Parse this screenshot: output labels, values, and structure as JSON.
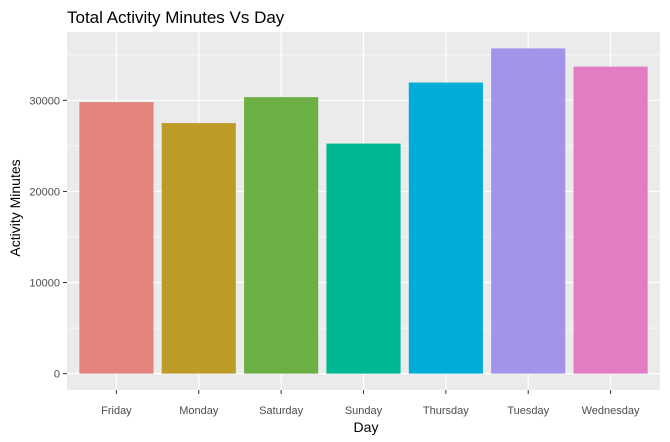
{
  "chart_data": {
    "type": "bar",
    "title": "Total Activity Minutes Vs Day",
    "xlabel": "Day",
    "ylabel": "Activity Minutes",
    "categories": [
      "Friday",
      "Monday",
      "Saturday",
      "Sunday",
      "Thursday",
      "Tuesday",
      "Wednesday"
    ],
    "values": [
      29800,
      27500,
      30350,
      25250,
      31950,
      35700,
      33700
    ],
    "colors": [
      "#E2837D",
      "#BC9B26",
      "#6CAF45",
      "#00B892",
      "#00ACD8",
      "#A493EA",
      "#E27DC4"
    ],
    "ylim": [
      -1800,
      37500
    ],
    "yticks": [
      0,
      10000,
      20000,
      30000
    ],
    "grid": true,
    "legend": "none",
    "panel_background": "#EBEBEB",
    "grid_color": "#FFFFFF"
  }
}
